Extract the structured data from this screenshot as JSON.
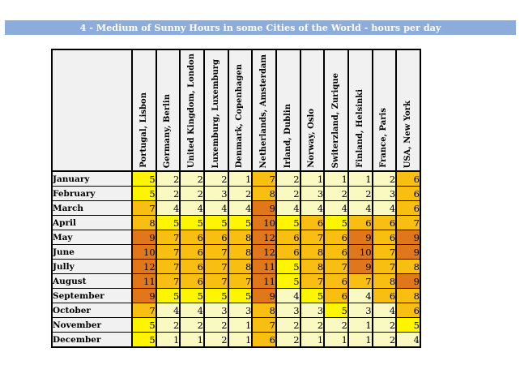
{
  "title": "4 - Medium of Sunny Hours in some Cities of the World - hours per day",
  "chart_data": {
    "type": "heatmap",
    "title": "4 - Medium of Sunny Hours in some Cities of the World - hours per day",
    "value_unit": "hours per day",
    "columns": [
      "Portugal, Lisbon",
      "Germany, Berlin",
      "United Kingdom, London",
      "Luxemburg, Luxemburg",
      "Denmark, Copenhagen",
      "Netherlands, Amsterdam",
      "Irland, Dublin",
      "Norway, Oslo",
      "Switerzland, Zurique",
      "Finland, Helsinki",
      "France, Paris",
      "USA, New York"
    ],
    "rows": [
      "January",
      "February",
      "March",
      "April",
      "May",
      "June",
      "Jully",
      "August",
      "September",
      "October",
      "November",
      "December"
    ],
    "values": [
      [
        5,
        2,
        2,
        2,
        1,
        7,
        2,
        1,
        1,
        1,
        2,
        6
      ],
      [
        5,
        2,
        2,
        3,
        2,
        8,
        2,
        3,
        2,
        2,
        3,
        6
      ],
      [
        7,
        4,
        4,
        4,
        4,
        9,
        4,
        4,
        4,
        4,
        4,
        6
      ],
      [
        8,
        5,
        5,
        5,
        5,
        10,
        5,
        6,
        5,
        6,
        6,
        7
      ],
      [
        9,
        7,
        6,
        6,
        8,
        12,
        6,
        7,
        6,
        9,
        6,
        9
      ],
      [
        10,
        7,
        6,
        7,
        8,
        12,
        6,
        8,
        6,
        10,
        7,
        9
      ],
      [
        12,
        7,
        6,
        7,
        8,
        11,
        5,
        8,
        7,
        9,
        7,
        8
      ],
      [
        11,
        7,
        6,
        7,
        7,
        11,
        5,
        7,
        6,
        7,
        8,
        9
      ],
      [
        9,
        5,
        5,
        5,
        5,
        9,
        4,
        5,
        6,
        4,
        6,
        8
      ],
      [
        7,
        4,
        4,
        3,
        3,
        8,
        3,
        3,
        5,
        3,
        4,
        6
      ],
      [
        5,
        2,
        2,
        2,
        1,
        7,
        2,
        2,
        2,
        1,
        2,
        5
      ],
      [
        5,
        1,
        1,
        2,
        1,
        6,
        2,
        1,
        1,
        1,
        2,
        4
      ]
    ],
    "color_buckets": [
      {
        "min": 1,
        "max": 4,
        "color": "#FBF9C2"
      },
      {
        "min": 5,
        "max": 5,
        "color": "#FFF500"
      },
      {
        "min": 6,
        "max": 8,
        "color": "#F8BE12"
      },
      {
        "min": 9,
        "max": 12,
        "color": "#E0771B"
      }
    ],
    "legend": "none",
    "grid": "black cell borders"
  },
  "colors": {
    "title_bar_bg": "#8CACDC",
    "title_text": "#FFFFFF",
    "header_cell_bg": "#F1F1F1",
    "row_label_bg": "#F1F1F1",
    "grid_line": "#000000",
    "page_bg": "#FFFFFF",
    "cell_text": "#000000"
  }
}
